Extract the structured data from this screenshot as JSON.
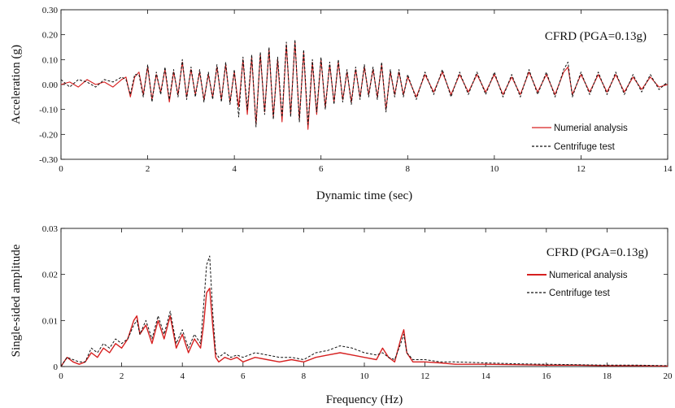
{
  "colors": {
    "numerical": "#d62020",
    "centrifuge": "#111111",
    "axis": "#111111"
  },
  "chart_data": [
    {
      "type": "line",
      "annotation": "CFRD (PGA=0.13g)",
      "xlabel": "Dynamic time (sec)",
      "ylabel": "Acceleration (g)",
      "xlim": [
        0,
        14
      ],
      "ylim": [
        -0.3,
        0.3
      ],
      "xticks": [
        "0",
        "2",
        "4",
        "6",
        "8",
        "10",
        "12",
        "14"
      ],
      "yticks": [
        "-0.30",
        "-0.20",
        "-0.10",
        "0.00",
        "0.10",
        "0.20",
        "0.30"
      ],
      "legend_position": "lower-right",
      "grid": false,
      "series": [
        {
          "name": "Numerial analysis",
          "style": "solid",
          "x": [
            0,
            0.2,
            0.4,
            0.6,
            0.8,
            1.0,
            1.2,
            1.4,
            1.5,
            1.6,
            1.7,
            1.8,
            1.9,
            2.0,
            2.1,
            2.2,
            2.3,
            2.4,
            2.5,
            2.6,
            2.7,
            2.8,
            2.9,
            3.0,
            3.1,
            3.2,
            3.3,
            3.4,
            3.5,
            3.6,
            3.7,
            3.8,
            3.9,
            4.0,
            4.1,
            4.2,
            4.3,
            4.4,
            4.5,
            4.6,
            4.7,
            4.8,
            4.9,
            5.0,
            5.1,
            5.2,
            5.3,
            5.4,
            5.5,
            5.6,
            5.7,
            5.8,
            5.9,
            6.0,
            6.1,
            6.2,
            6.3,
            6.4,
            6.5,
            6.6,
            6.7,
            6.8,
            6.9,
            7.0,
            7.1,
            7.2,
            7.3,
            7.4,
            7.5,
            7.6,
            7.7,
            7.8,
            7.9,
            8.0,
            8.2,
            8.4,
            8.6,
            8.8,
            9.0,
            9.2,
            9.4,
            9.6,
            9.8,
            10.0,
            10.2,
            10.4,
            10.6,
            10.8,
            11.0,
            11.2,
            11.4,
            11.6,
            11.7,
            11.8,
            12.0,
            12.2,
            12.4,
            12.6,
            12.8,
            13.0,
            13.2,
            13.4,
            13.6,
            13.8,
            14.0
          ],
          "y": [
            0.0,
            0.01,
            -0.01,
            0.02,
            0.0,
            0.01,
            -0.01,
            0.02,
            0.03,
            -0.05,
            0.03,
            0.05,
            -0.04,
            0.07,
            -0.06,
            0.04,
            -0.03,
            0.06,
            -0.07,
            0.05,
            -0.04,
            0.09,
            -0.05,
            0.06,
            -0.04,
            0.05,
            -0.06,
            0.04,
            -0.05,
            0.07,
            -0.06,
            0.08,
            -0.07,
            0.05,
            -0.09,
            0.1,
            -0.12,
            0.11,
            -0.16,
            0.12,
            -0.11,
            0.14,
            -0.13,
            0.1,
            -0.15,
            0.16,
            -0.12,
            0.17,
            -0.14,
            0.13,
            -0.18,
            0.09,
            -0.12,
            0.1,
            -0.09,
            0.08,
            -0.07,
            0.09,
            -0.06,
            0.05,
            -0.07,
            0.06,
            -0.05,
            0.07,
            -0.04,
            0.06,
            -0.05,
            0.08,
            -0.1,
            0.05,
            -0.04,
            0.05,
            -0.04,
            0.03,
            -0.05,
            0.04,
            -0.03,
            0.05,
            -0.04,
            0.04,
            -0.03,
            0.04,
            -0.03,
            0.04,
            -0.04,
            0.03,
            -0.04,
            0.05,
            -0.03,
            0.04,
            -0.04,
            0.05,
            0.07,
            -0.04,
            0.04,
            -0.03,
            0.04,
            -0.03,
            0.04,
            -0.03,
            0.03,
            -0.02,
            0.03,
            -0.01,
            0.0
          ]
        },
        {
          "name": "Centrifuge test",
          "style": "dashed",
          "x": [
            0,
            0.2,
            0.4,
            0.6,
            0.8,
            1.0,
            1.2,
            1.4,
            1.5,
            1.6,
            1.7,
            1.8,
            1.9,
            2.0,
            2.1,
            2.2,
            2.3,
            2.4,
            2.5,
            2.6,
            2.7,
            2.8,
            2.9,
            3.0,
            3.1,
            3.2,
            3.3,
            3.4,
            3.5,
            3.6,
            3.7,
            3.8,
            3.9,
            4.0,
            4.1,
            4.2,
            4.3,
            4.4,
            4.5,
            4.6,
            4.7,
            4.8,
            4.9,
            5.0,
            5.1,
            5.2,
            5.3,
            5.4,
            5.5,
            5.6,
            5.7,
            5.8,
            5.9,
            6.0,
            6.1,
            6.2,
            6.3,
            6.4,
            6.5,
            6.6,
            6.7,
            6.8,
            6.9,
            7.0,
            7.1,
            7.2,
            7.3,
            7.4,
            7.5,
            7.6,
            7.7,
            7.8,
            7.9,
            8.0,
            8.2,
            8.4,
            8.6,
            8.8,
            9.0,
            9.2,
            9.4,
            9.6,
            9.8,
            10.0,
            10.2,
            10.4,
            10.6,
            10.8,
            11.0,
            11.2,
            11.4,
            11.6,
            11.7,
            11.8,
            12.0,
            12.2,
            12.4,
            12.6,
            12.8,
            13.0,
            13.2,
            13.4,
            13.6,
            13.8,
            14.0
          ],
          "y": [
            0.02,
            -0.01,
            0.02,
            0.01,
            -0.01,
            0.02,
            0.01,
            0.03,
            0.02,
            -0.04,
            0.04,
            0.04,
            -0.05,
            0.08,
            -0.07,
            0.05,
            -0.04,
            0.07,
            -0.06,
            0.06,
            -0.05,
            0.1,
            -0.06,
            0.07,
            -0.05,
            0.06,
            -0.07,
            0.05,
            -0.06,
            0.08,
            -0.07,
            0.09,
            -0.08,
            0.06,
            -0.13,
            0.11,
            -0.1,
            0.12,
            -0.17,
            0.13,
            -0.12,
            0.15,
            -0.14,
            0.11,
            -0.13,
            0.17,
            -0.13,
            0.18,
            -0.15,
            0.14,
            -0.16,
            0.1,
            -0.11,
            0.11,
            -0.1,
            0.09,
            -0.08,
            0.1,
            -0.07,
            0.06,
            -0.08,
            0.07,
            -0.06,
            0.08,
            -0.05,
            0.07,
            -0.06,
            0.09,
            -0.11,
            0.06,
            -0.05,
            0.06,
            -0.05,
            0.04,
            -0.06,
            0.05,
            -0.04,
            0.06,
            -0.05,
            0.05,
            -0.04,
            0.05,
            -0.04,
            0.05,
            -0.05,
            0.04,
            -0.05,
            0.06,
            -0.04,
            0.05,
            -0.05,
            0.06,
            0.09,
            -0.05,
            0.05,
            -0.04,
            0.05,
            -0.04,
            0.05,
            -0.04,
            0.04,
            -0.03,
            0.04,
            -0.02,
            0.01
          ]
        }
      ]
    },
    {
      "type": "line",
      "annotation": "CFRD (PGA=0.13g)",
      "xlabel": "Frequency (Hz)",
      "ylabel": "Single-sided amplitude",
      "xlim": [
        0,
        20
      ],
      "ylim": [
        0,
        0.03
      ],
      "xticks": [
        "0",
        "2",
        "4",
        "6",
        "8",
        "10",
        "12",
        "14",
        "16",
        "18",
        "20"
      ],
      "yticks": [
        "0",
        "0.01",
        "0.02",
        "0.03"
      ],
      "legend_position": "upper-right",
      "grid": false,
      "series": [
        {
          "name": "Numerical analysis",
          "style": "solid",
          "x": [
            0,
            0.1,
            0.2,
            0.4,
            0.6,
            0.8,
            1.0,
            1.2,
            1.4,
            1.6,
            1.8,
            2.0,
            2.2,
            2.4,
            2.5,
            2.6,
            2.8,
            3.0,
            3.2,
            3.4,
            3.6,
            3.8,
            4.0,
            4.2,
            4.4,
            4.6,
            4.7,
            4.8,
            4.9,
            5.0,
            5.1,
            5.2,
            5.4,
            5.6,
            5.8,
            6.0,
            6.4,
            6.8,
            7.2,
            7.6,
            8.0,
            8.4,
            8.8,
            9.2,
            9.6,
            10.0,
            10.4,
            10.6,
            10.8,
            11.0,
            11.2,
            11.3,
            11.4,
            11.6,
            12.0,
            12.5,
            13,
            14,
            15,
            16,
            17,
            18,
            19,
            20
          ],
          "y": [
            0.0,
            0.001,
            0.002,
            0.001,
            0.0005,
            0.001,
            0.003,
            0.002,
            0.004,
            0.003,
            0.005,
            0.004,
            0.006,
            0.01,
            0.011,
            0.007,
            0.009,
            0.005,
            0.01,
            0.006,
            0.011,
            0.004,
            0.007,
            0.003,
            0.006,
            0.004,
            0.009,
            0.016,
            0.017,
            0.009,
            0.002,
            0.001,
            0.002,
            0.0015,
            0.002,
            0.001,
            0.002,
            0.0015,
            0.001,
            0.0015,
            0.001,
            0.002,
            0.0025,
            0.003,
            0.0025,
            0.002,
            0.0015,
            0.004,
            0.002,
            0.001,
            0.006,
            0.008,
            0.003,
            0.001,
            0.001,
            0.0008,
            0.0005,
            0.0005,
            0.0004,
            0.0003,
            0.0003,
            0.0002,
            0.0002,
            0.0001
          ]
        },
        {
          "name": "Centrifuge test",
          "style": "dashed",
          "x": [
            0,
            0.1,
            0.2,
            0.4,
            0.6,
            0.8,
            1.0,
            1.2,
            1.4,
            1.6,
            1.8,
            2.0,
            2.2,
            2.4,
            2.5,
            2.6,
            2.8,
            3.0,
            3.2,
            3.4,
            3.6,
            3.8,
            4.0,
            4.2,
            4.4,
            4.6,
            4.7,
            4.8,
            4.9,
            5.0,
            5.1,
            5.2,
            5.4,
            5.6,
            5.8,
            6.0,
            6.4,
            6.8,
            7.2,
            7.6,
            8.0,
            8.4,
            8.8,
            9.2,
            9.6,
            10.0,
            10.4,
            10.6,
            10.8,
            11.0,
            11.2,
            11.3,
            11.4,
            11.6,
            12.0,
            12.5,
            13,
            14,
            15,
            16,
            17,
            18,
            19,
            20
          ],
          "y": [
            0.0,
            0.001,
            0.002,
            0.0015,
            0.001,
            0.001,
            0.004,
            0.003,
            0.005,
            0.004,
            0.006,
            0.005,
            0.006,
            0.009,
            0.01,
            0.007,
            0.01,
            0.006,
            0.011,
            0.007,
            0.012,
            0.005,
            0.008,
            0.004,
            0.007,
            0.005,
            0.013,
            0.022,
            0.024,
            0.012,
            0.003,
            0.002,
            0.003,
            0.002,
            0.0025,
            0.002,
            0.003,
            0.0025,
            0.002,
            0.002,
            0.0015,
            0.003,
            0.0035,
            0.0045,
            0.004,
            0.003,
            0.0025,
            0.003,
            0.002,
            0.0015,
            0.005,
            0.007,
            0.003,
            0.0015,
            0.0015,
            0.001,
            0.001,
            0.0008,
            0.0006,
            0.0005,
            0.0004,
            0.0003,
            0.0003,
            0.0002
          ]
        }
      ]
    }
  ]
}
